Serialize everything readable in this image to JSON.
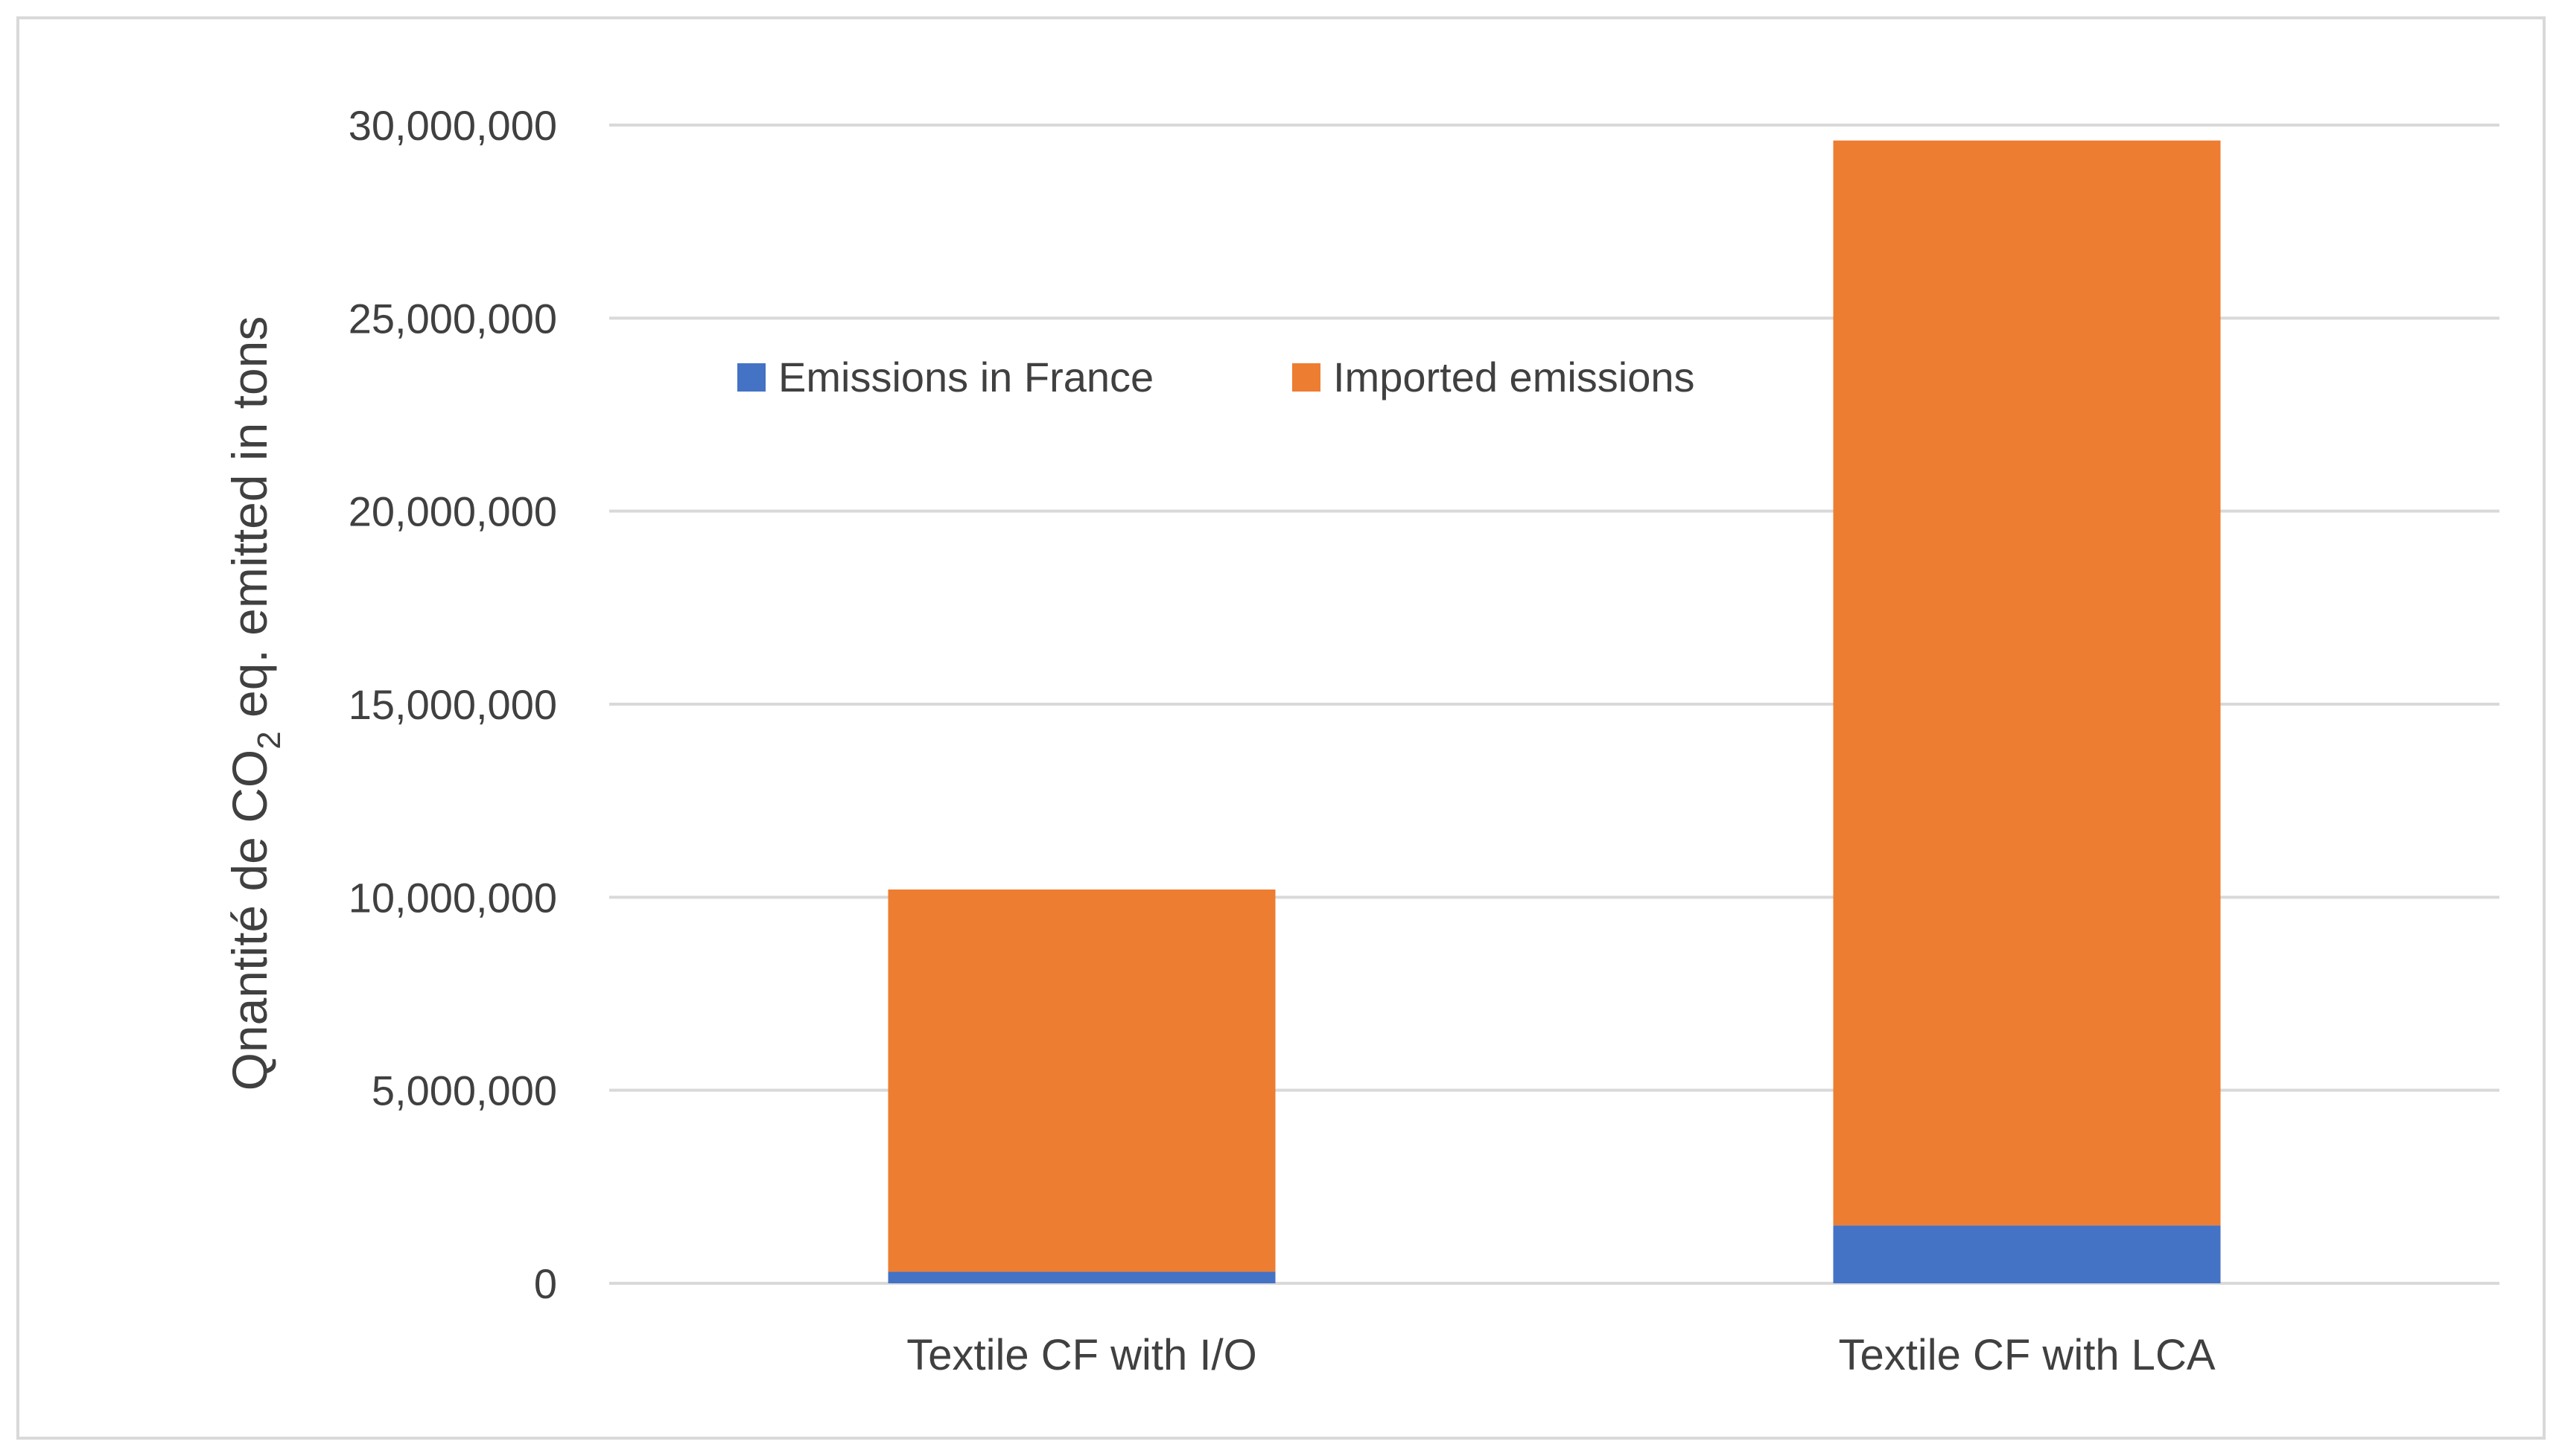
{
  "chart_data": {
    "type": "bar",
    "stacked": true,
    "title": "",
    "xlabel": "",
    "ylabel": {
      "prefix": "Qnantité de CO",
      "subscript": "2",
      "suffix": " eq. emitted in tons"
    },
    "categories": [
      "Textile CF with I/O",
      "Textile CF with LCA"
    ],
    "series": [
      {
        "name": "Emissions in France",
        "color": "#4472c4",
        "values": [
          300000,
          1500000
        ]
      },
      {
        "name": "Imported emissions",
        "color": "#ed7d31",
        "values": [
          9900000,
          28100000
        ]
      }
    ],
    "ylim": [
      0,
      30000000
    ],
    "yticks": [
      0,
      5000000,
      10000000,
      15000000,
      20000000,
      25000000,
      30000000
    ],
    "ytick_labels": [
      "0",
      "5,000,000",
      "10,000,000",
      "15,000,000",
      "20,000,000",
      "25,000,000",
      "30,000,000"
    ],
    "grid": true,
    "legend_position": "top-left inside plot"
  }
}
